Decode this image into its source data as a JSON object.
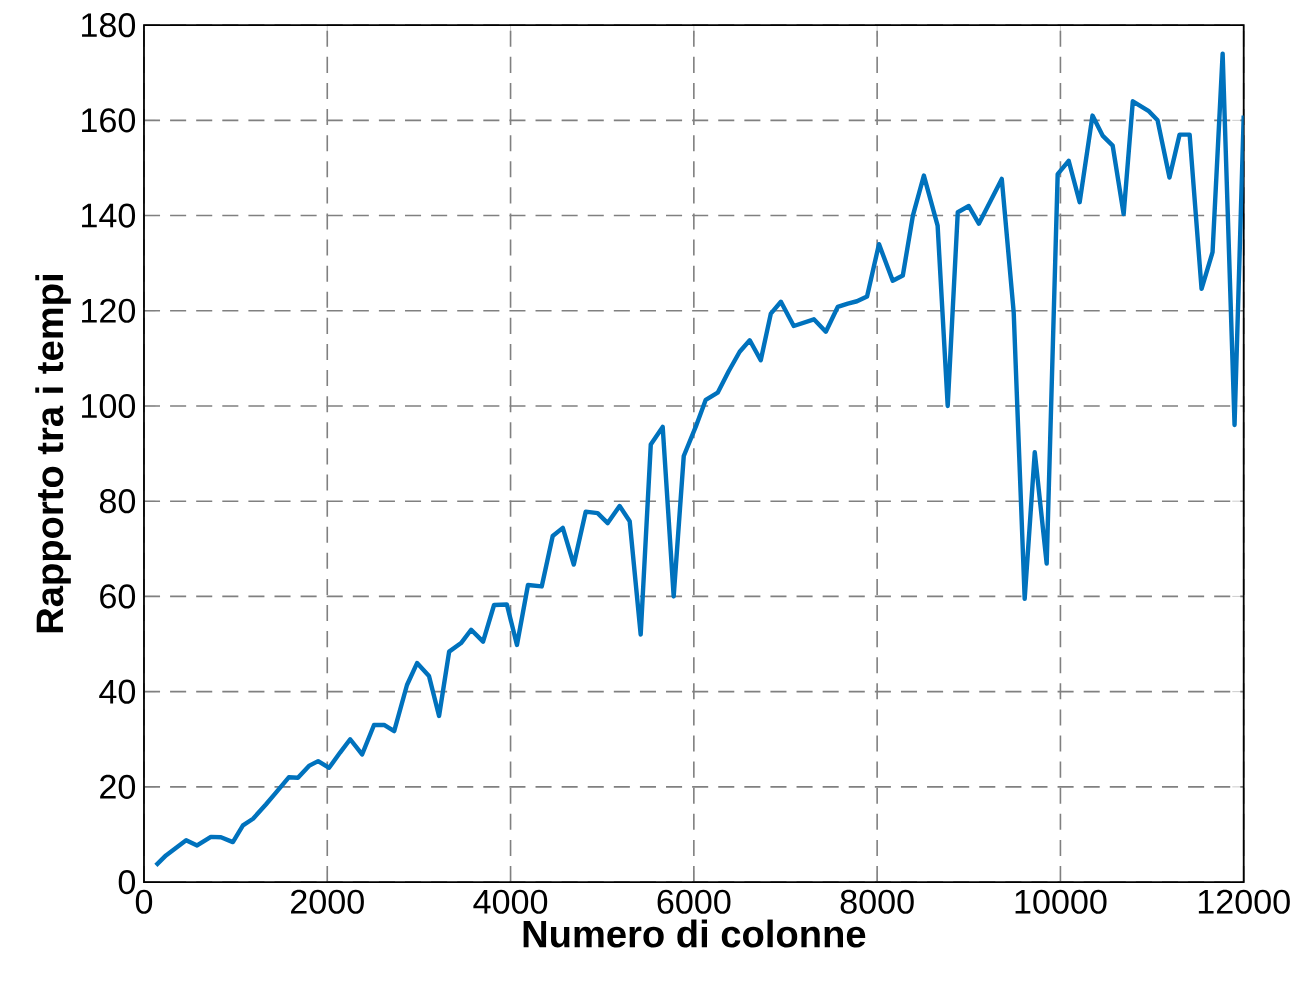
{
  "chart_data": {
    "type": "line",
    "xlabel": "Numero di colonne",
    "ylabel": "Rapporto tra i tempi",
    "xlim": [
      0,
      12000
    ],
    "ylim": [
      0,
      180
    ],
    "xticks": [
      0,
      2000,
      4000,
      6000,
      8000,
      10000,
      12000
    ],
    "yticks": [
      0,
      20,
      40,
      60,
      80,
      100,
      120,
      140,
      160,
      180
    ],
    "grid": true,
    "line_style": "solid",
    "marker": "none",
    "series": [
      {
        "color": "#0072bd",
        "x": [
          130,
          240,
          460,
          580,
          730,
          840,
          970,
          1080,
          1190,
          1330,
          1440,
          1580,
          1680,
          1800,
          1900,
          2020,
          2140,
          2250,
          2380,
          2510,
          2620,
          2730,
          2870,
          2980,
          3110,
          3220,
          3330,
          3460,
          3570,
          3700,
          3820,
          3960,
          4070,
          4190,
          4340,
          4460,
          4570,
          4690,
          4820,
          4950,
          5060,
          5190,
          5300,
          5420,
          5530,
          5660,
          5780,
          5890,
          6020,
          6130,
          6260,
          6380,
          6500,
          6610,
          6730,
          6840,
          6950,
          7090,
          7310,
          7440,
          7570,
          7680,
          7780,
          7890,
          8020,
          8170,
          8280,
          8390,
          8510,
          8660,
          8770,
          8880,
          9000,
          9110,
          9360,
          9490,
          9610,
          9720,
          9850,
          9970,
          10090,
          10210,
          10350,
          10460,
          10570,
          10690,
          10790,
          10960,
          11060,
          11190,
          11300,
          11410,
          11540,
          11660,
          11770,
          11900,
          12000
        ],
        "values": [
          3.5,
          5.6,
          8.8,
          7.7,
          9.5,
          9.4,
          8.4,
          11.9,
          13.3,
          16.3,
          18.8,
          22,
          21.9,
          24.4,
          25.4,
          24,
          27.2,
          30,
          26.8,
          33,
          33,
          31.7,
          41.4,
          46,
          43.3,
          34.9,
          48.4,
          50.2,
          53,
          50.5,
          58.2,
          58.3,
          49.8,
          62.4,
          62.1,
          72.7,
          74.4,
          66.7,
          77.8,
          77.5,
          75.4,
          79,
          75.8,
          52,
          91.9,
          95.6,
          60,
          89.5,
          95.6,
          101.3,
          102.8,
          107.3,
          111.4,
          113.8,
          109.6,
          119.4,
          121.9,
          116.8,
          118.2,
          115.6,
          120.8,
          121.5,
          122,
          123,
          134,
          126.3,
          127.4,
          140,
          148.4,
          137.9,
          100,
          140.7,
          142,
          138.3,
          147.7,
          119.7,
          59.5,
          90.3,
          66.9,
          148.7,
          151.5,
          142.8,
          161,
          156.8,
          154.7,
          140.3,
          164,
          162,
          160,
          148,
          157,
          157,
          124.6,
          132.3,
          174,
          96,
          161
        ]
      }
    ]
  }
}
